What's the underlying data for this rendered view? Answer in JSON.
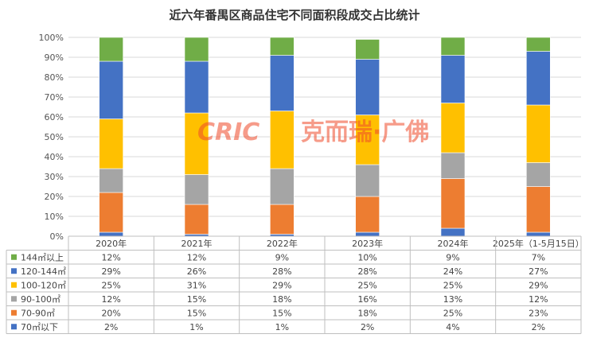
{
  "chart_data": {
    "type": "stacked-bar-100",
    "title": "近六年番禺区商品住宅不同面积段成交占比统计",
    "categories": [
      "2020年",
      "2021年",
      "2022年",
      "2023年",
      "2024年",
      "2025年（1-5月15日）"
    ],
    "y_ticks": [
      "0%",
      "10%",
      "20%",
      "30%",
      "40%",
      "50%",
      "60%",
      "70%",
      "80%",
      "90%",
      "100%"
    ],
    "ylim": [
      0,
      100
    ],
    "grid": true,
    "legend_position": "table-left",
    "series": [
      {
        "name": "70㎡以下",
        "color": "#4472c4",
        "values": [
          2,
          1,
          1,
          2,
          4,
          2
        ],
        "labels": [
          "2%",
          "1%",
          "1%",
          "2%",
          "4%",
          "2%"
        ]
      },
      {
        "name": "70-90㎡",
        "color": "#ed7d31",
        "values": [
          20,
          15,
          15,
          18,
          25,
          23
        ],
        "labels": [
          "20%",
          "15%",
          "15%",
          "18%",
          "25%",
          "23%"
        ]
      },
      {
        "name": "90-100㎡",
        "color": "#a5a5a5",
        "values": [
          12,
          15,
          18,
          16,
          13,
          12
        ],
        "labels": [
          "12%",
          "15%",
          "18%",
          "16%",
          "13%",
          "12%"
        ]
      },
      {
        "name": "100-120㎡",
        "color": "#ffc000",
        "values": [
          25,
          31,
          29,
          25,
          25,
          29
        ],
        "labels": [
          "25%",
          "31%",
          "29%",
          "25%",
          "25%",
          "29%"
        ]
      },
      {
        "name": "120-144㎡",
        "color": "#4472c4",
        "values": [
          29,
          26,
          28,
          28,
          24,
          27
        ],
        "labels": [
          "29%",
          "26%",
          "28%",
          "28%",
          "24%",
          "27%"
        ]
      },
      {
        "name": "144㎡以上",
        "color": "#70ad47",
        "values": [
          12,
          12,
          9,
          10,
          9,
          7
        ],
        "labels": [
          "12%",
          "12%",
          "9%",
          "10%",
          "9%",
          "7%"
        ]
      }
    ]
  },
  "watermark": {
    "logo": "CRIC",
    "text": "克而瑞·广佛"
  }
}
